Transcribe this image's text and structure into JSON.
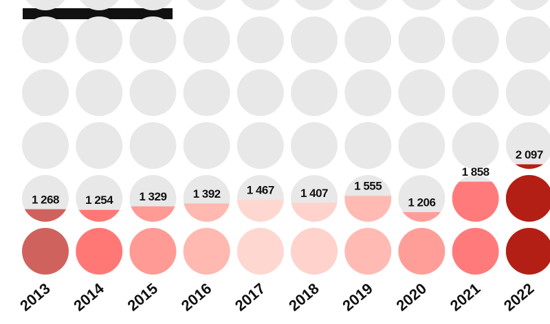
{
  "chart_data": {
    "type": "dot-fill",
    "categories": [
      "2013",
      "2014",
      "2015",
      "2016",
      "2017",
      "2018",
      "2019",
      "2020",
      "2021",
      "2022"
    ],
    "values": [
      1268,
      1254,
      1329,
      1392,
      1467,
      1407,
      1555,
      1206,
      1858,
      2097
    ],
    "value_labels": [
      "1 268",
      "1 254",
      "1 329",
      "1 392",
      "1 467",
      "1 407",
      "1 555",
      "1 206",
      "1 858",
      "2 097"
    ],
    "colors": [
      "#d0625e",
      "#ff7876",
      "#ff9a94",
      "#ffb9b1",
      "#ffd7d1",
      "#ffd2cc",
      "#ffbbb3",
      "#ff9e98",
      "#ff7b7b",
      "#b31f14"
    ],
    "ylim": [
      0,
      6000
    ]
  }
}
